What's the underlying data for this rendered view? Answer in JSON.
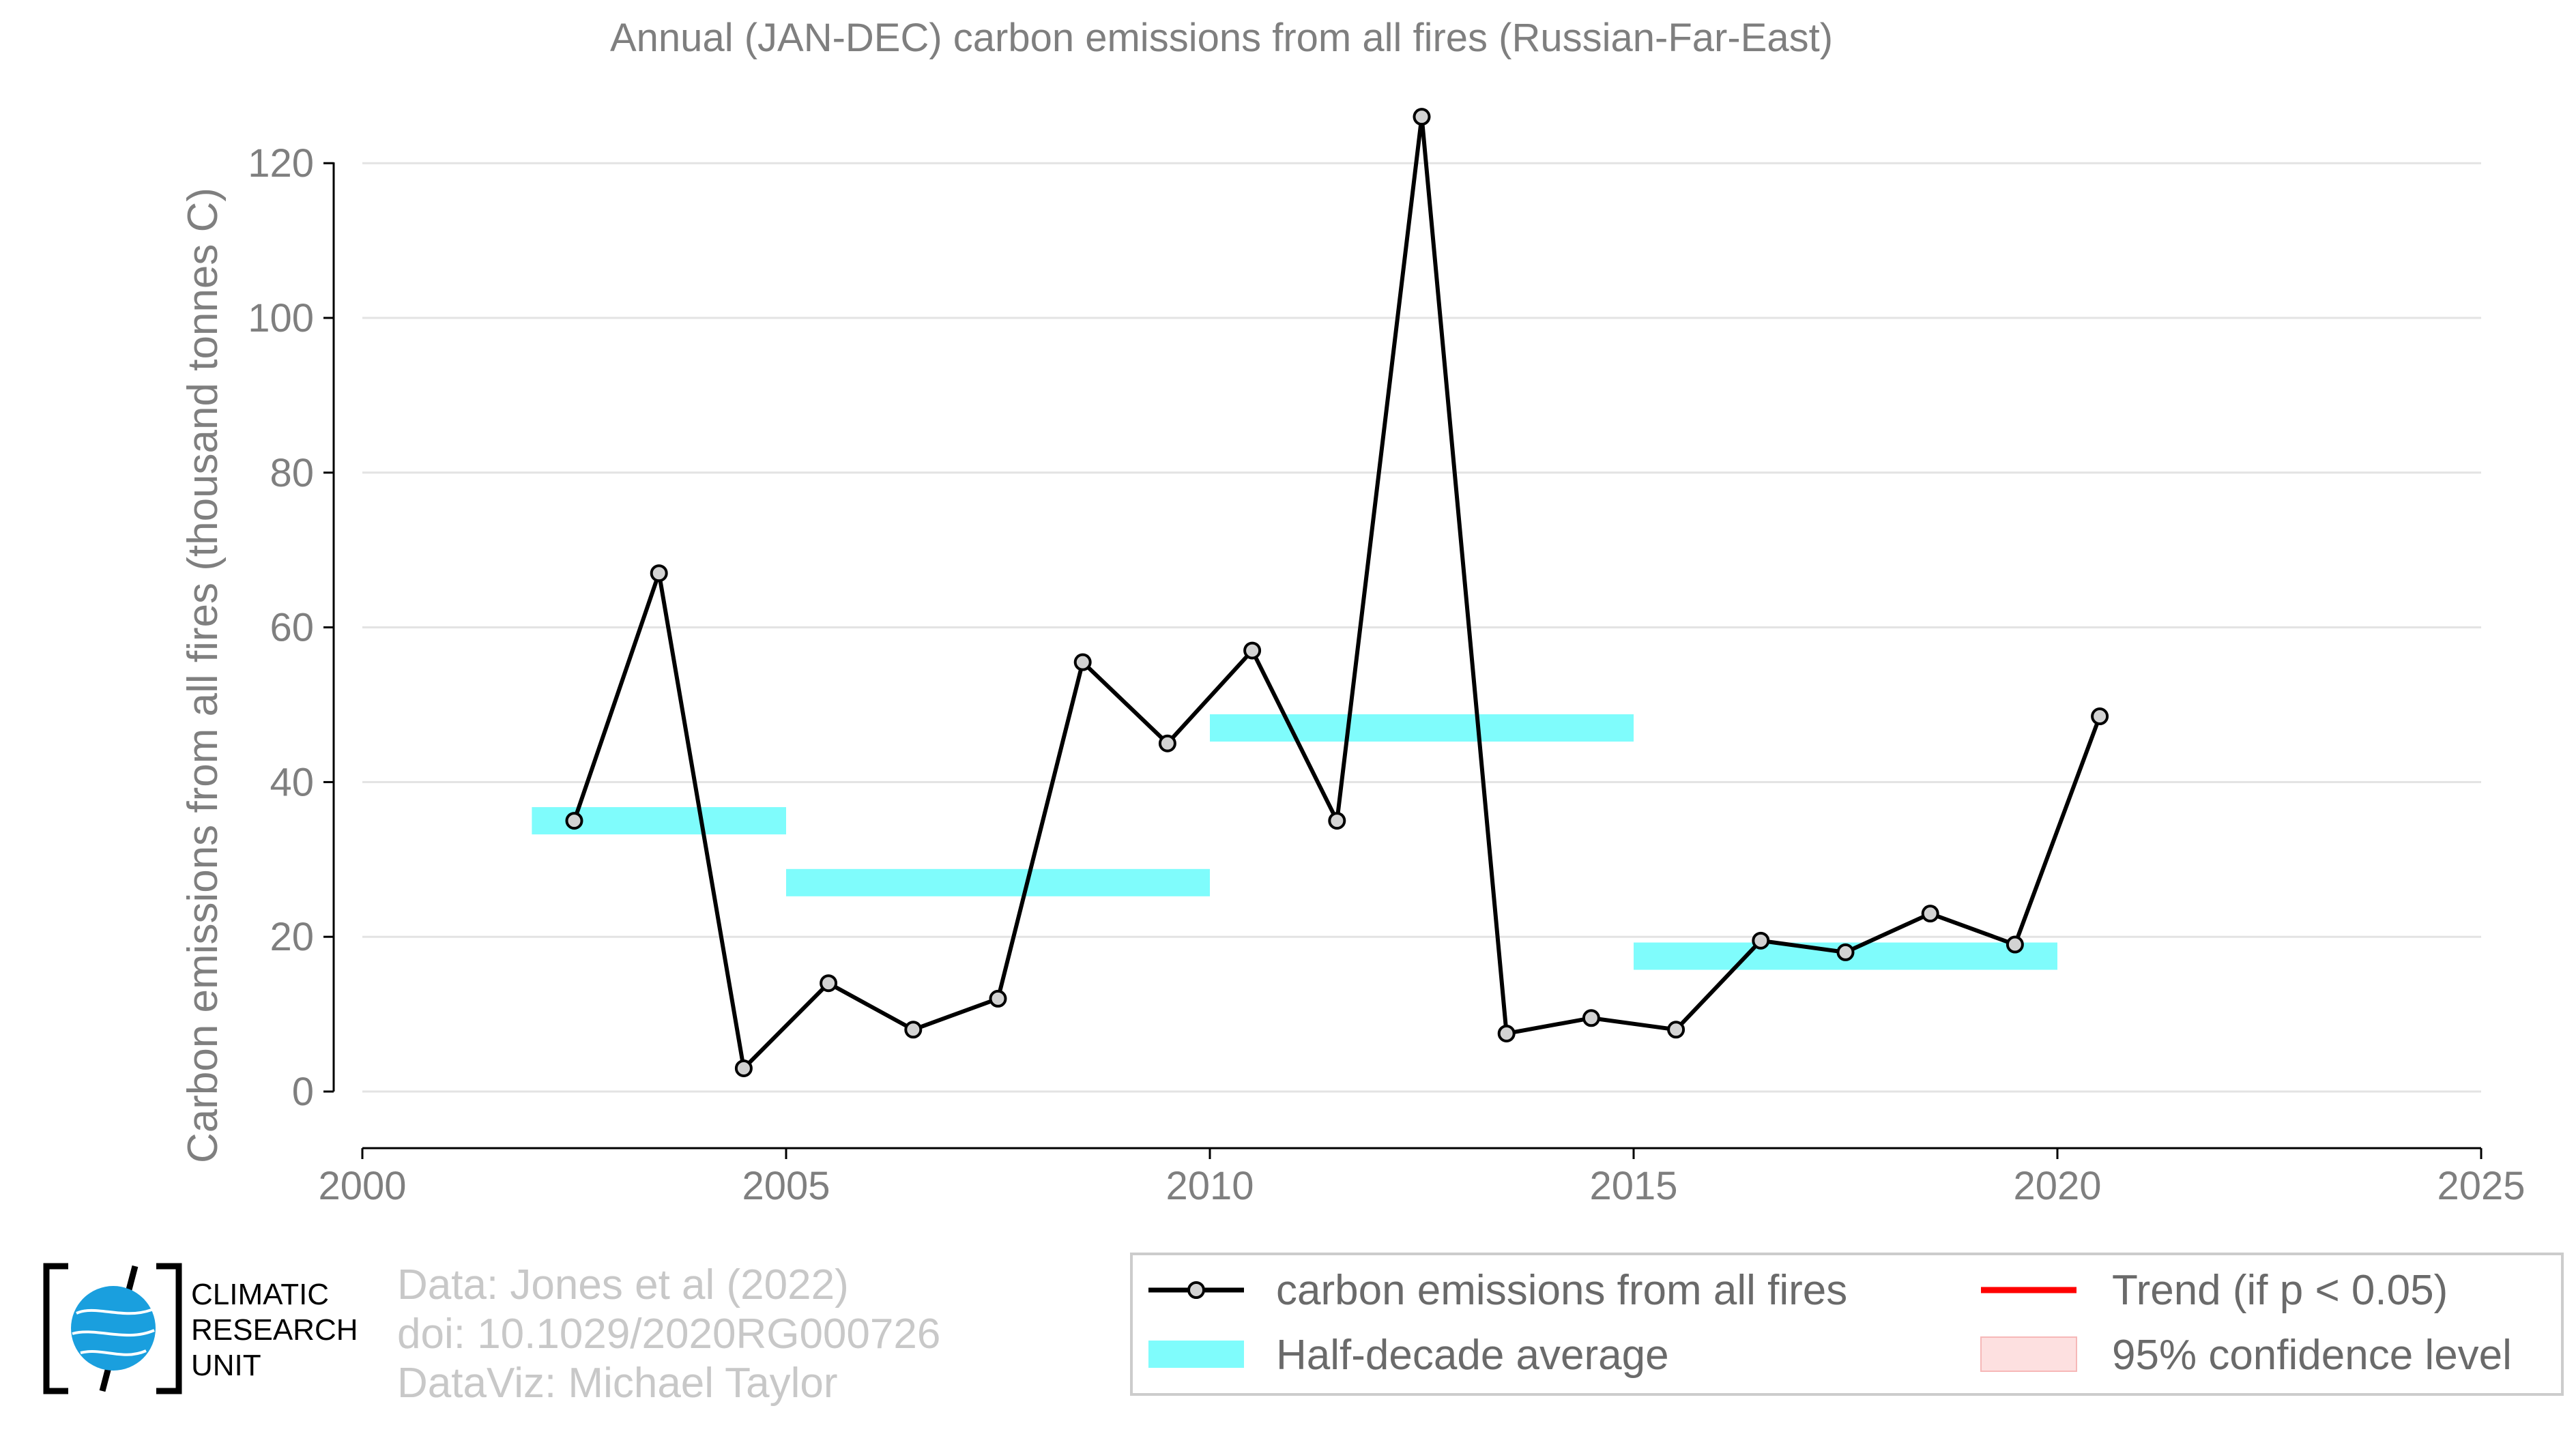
{
  "chart_data": {
    "type": "line",
    "title": "Annual (JAN-DEC) carbon emissions from all fires (Russian-Far-East)",
    "ylabel": "Carbon emissions from all fires (thousand tonnes C)",
    "xlabel": "",
    "xlim": [
      2000,
      2025
    ],
    "ylim": [
      -3,
      128
    ],
    "x_ticks": [
      "2000",
      "2005",
      "2010",
      "2015",
      "2020",
      "2025"
    ],
    "y_ticks": [
      "0",
      "20",
      "40",
      "60",
      "80",
      "100",
      "120"
    ],
    "grid": "horizontal",
    "series": [
      {
        "name": "carbon emissions from all fires",
        "color": "#000000",
        "marker_fill": "#d3d3d3",
        "x": [
          2002.5,
          2003.5,
          2004.5,
          2005.5,
          2006.5,
          2007.5,
          2008.5,
          2009.5,
          2010.5,
          2011.5,
          2012.5,
          2013.5,
          2014.5,
          2015.5,
          2016.5,
          2017.5,
          2018.5,
          2019.5,
          2020.5
        ],
        "y": [
          35,
          67,
          3,
          14,
          8,
          12,
          55.5,
          45,
          57,
          35,
          126,
          7.5,
          9.5,
          8,
          19.5,
          18,
          23,
          19,
          48.5
        ]
      }
    ],
    "half_decade_average": {
      "name": "Half-decade average",
      "color": "#7ffcfc",
      "segments": [
        {
          "x0": 2002,
          "x1": 2005,
          "y": 35
        },
        {
          "x0": 2005,
          "x1": 2010,
          "y": 27
        },
        {
          "x0": 2010,
          "x1": 2015,
          "y": 47
        },
        {
          "x0": 2015,
          "x1": 2020,
          "y": 17.5
        }
      ]
    },
    "legend": {
      "placement": "bottom-right",
      "entries": [
        {
          "label": "carbon emissions from all fires",
          "kind": "line-marker",
          "color": "#000000"
        },
        {
          "label": "Trend (if p < 0.05)",
          "kind": "line",
          "color": "#ff0000"
        },
        {
          "label": "Half-decade average",
          "kind": "band",
          "color": "#7ffcfc"
        },
        {
          "label": "95% confidence level",
          "kind": "patch",
          "color": "#fde0e0"
        }
      ]
    }
  },
  "credits": {
    "line1": "Data: Jones et al (2022)",
    "line2": "doi: 10.1029/2020RG000726",
    "line3": "DataViz: Michael Taylor"
  },
  "logo": {
    "line1": "CLIMATIC",
    "line2": "RESEARCH",
    "line3": "UNIT",
    "globe_color": "#1a9fde"
  }
}
